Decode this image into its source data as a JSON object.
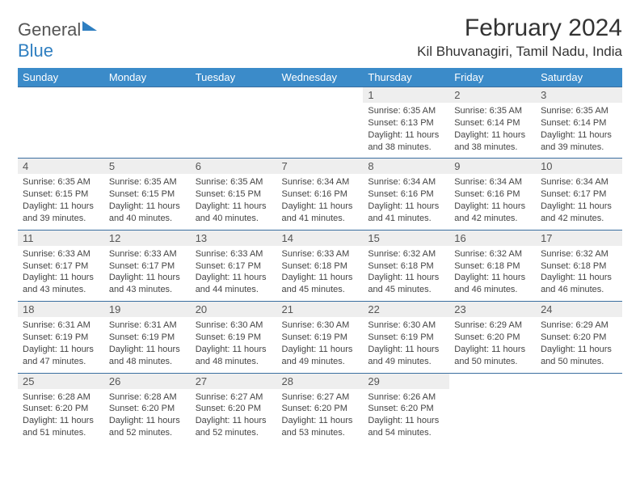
{
  "logo": {
    "word1": "General",
    "word2": "Blue"
  },
  "title": "February 2024",
  "location": "Kil Bhuvanagiri, Tamil Nadu, India",
  "colors": {
    "header_bg": "#3b8bc9",
    "header_text": "#ffffff",
    "daynum_bg": "#eeeeee",
    "rule": "#3b6fa0",
    "logo_blue": "#2f7fc1"
  },
  "day_headers": [
    "Sunday",
    "Monday",
    "Tuesday",
    "Wednesday",
    "Thursday",
    "Friday",
    "Saturday"
  ],
  "weeks": [
    [
      null,
      null,
      null,
      null,
      {
        "n": "1",
        "sr": "6:35 AM",
        "ss": "6:13 PM",
        "dl": "11 hours and 38 minutes."
      },
      {
        "n": "2",
        "sr": "6:35 AM",
        "ss": "6:14 PM",
        "dl": "11 hours and 38 minutes."
      },
      {
        "n": "3",
        "sr": "6:35 AM",
        "ss": "6:14 PM",
        "dl": "11 hours and 39 minutes."
      }
    ],
    [
      {
        "n": "4",
        "sr": "6:35 AM",
        "ss": "6:15 PM",
        "dl": "11 hours and 39 minutes."
      },
      {
        "n": "5",
        "sr": "6:35 AM",
        "ss": "6:15 PM",
        "dl": "11 hours and 40 minutes."
      },
      {
        "n": "6",
        "sr": "6:35 AM",
        "ss": "6:15 PM",
        "dl": "11 hours and 40 minutes."
      },
      {
        "n": "7",
        "sr": "6:34 AM",
        "ss": "6:16 PM",
        "dl": "11 hours and 41 minutes."
      },
      {
        "n": "8",
        "sr": "6:34 AM",
        "ss": "6:16 PM",
        "dl": "11 hours and 41 minutes."
      },
      {
        "n": "9",
        "sr": "6:34 AM",
        "ss": "6:16 PM",
        "dl": "11 hours and 42 minutes."
      },
      {
        "n": "10",
        "sr": "6:34 AM",
        "ss": "6:17 PM",
        "dl": "11 hours and 42 minutes."
      }
    ],
    [
      {
        "n": "11",
        "sr": "6:33 AM",
        "ss": "6:17 PM",
        "dl": "11 hours and 43 minutes."
      },
      {
        "n": "12",
        "sr": "6:33 AM",
        "ss": "6:17 PM",
        "dl": "11 hours and 43 minutes."
      },
      {
        "n": "13",
        "sr": "6:33 AM",
        "ss": "6:17 PM",
        "dl": "11 hours and 44 minutes."
      },
      {
        "n": "14",
        "sr": "6:33 AM",
        "ss": "6:18 PM",
        "dl": "11 hours and 45 minutes."
      },
      {
        "n": "15",
        "sr": "6:32 AM",
        "ss": "6:18 PM",
        "dl": "11 hours and 45 minutes."
      },
      {
        "n": "16",
        "sr": "6:32 AM",
        "ss": "6:18 PM",
        "dl": "11 hours and 46 minutes."
      },
      {
        "n": "17",
        "sr": "6:32 AM",
        "ss": "6:18 PM",
        "dl": "11 hours and 46 minutes."
      }
    ],
    [
      {
        "n": "18",
        "sr": "6:31 AM",
        "ss": "6:19 PM",
        "dl": "11 hours and 47 minutes."
      },
      {
        "n": "19",
        "sr": "6:31 AM",
        "ss": "6:19 PM",
        "dl": "11 hours and 48 minutes."
      },
      {
        "n": "20",
        "sr": "6:30 AM",
        "ss": "6:19 PM",
        "dl": "11 hours and 48 minutes."
      },
      {
        "n": "21",
        "sr": "6:30 AM",
        "ss": "6:19 PM",
        "dl": "11 hours and 49 minutes."
      },
      {
        "n": "22",
        "sr": "6:30 AM",
        "ss": "6:19 PM",
        "dl": "11 hours and 49 minutes."
      },
      {
        "n": "23",
        "sr": "6:29 AM",
        "ss": "6:20 PM",
        "dl": "11 hours and 50 minutes."
      },
      {
        "n": "24",
        "sr": "6:29 AM",
        "ss": "6:20 PM",
        "dl": "11 hours and 50 minutes."
      }
    ],
    [
      {
        "n": "25",
        "sr": "6:28 AM",
        "ss": "6:20 PM",
        "dl": "11 hours and 51 minutes."
      },
      {
        "n": "26",
        "sr": "6:28 AM",
        "ss": "6:20 PM",
        "dl": "11 hours and 52 minutes."
      },
      {
        "n": "27",
        "sr": "6:27 AM",
        "ss": "6:20 PM",
        "dl": "11 hours and 52 minutes."
      },
      {
        "n": "28",
        "sr": "6:27 AM",
        "ss": "6:20 PM",
        "dl": "11 hours and 53 minutes."
      },
      {
        "n": "29",
        "sr": "6:26 AM",
        "ss": "6:20 PM",
        "dl": "11 hours and 54 minutes."
      },
      null,
      null
    ]
  ],
  "labels": {
    "sunrise": "Sunrise:",
    "sunset": "Sunset:",
    "daylight": "Daylight:"
  }
}
